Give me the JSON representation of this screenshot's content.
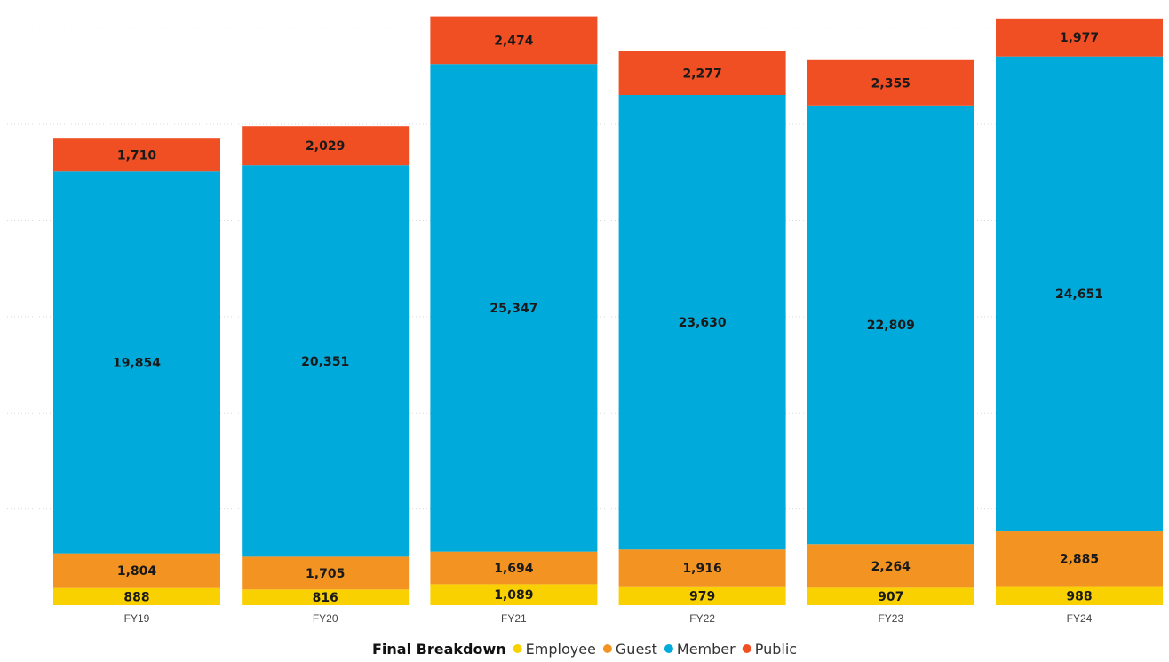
{
  "chart_data": {
    "type": "bar",
    "stacked": true,
    "title": "",
    "xlabel": "",
    "ylabel": "",
    "categories": [
      "FY19",
      "FY20",
      "FY21",
      "FY22",
      "FY23",
      "FY24"
    ],
    "ylim": [
      0,
      31000
    ],
    "grid": true,
    "legend": {
      "title": "Final Breakdown",
      "placement": "bottom-center"
    },
    "series": [
      {
        "name": "Employee",
        "color": "#F9D000",
        "values": [
          888,
          816,
          1089,
          979,
          907,
          988
        ]
      },
      {
        "name": "Guest",
        "color": "#F39422",
        "values": [
          1804,
          1705,
          1694,
          1916,
          2264,
          2885
        ]
      },
      {
        "name": "Member",
        "color": "#00ABDB",
        "values": [
          19854,
          20351,
          25347,
          23630,
          22809,
          24651
        ]
      },
      {
        "name": "Public",
        "color": "#F04E23",
        "values": [
          1710,
          2029,
          2474,
          2277,
          2355,
          1977
        ]
      }
    ]
  }
}
